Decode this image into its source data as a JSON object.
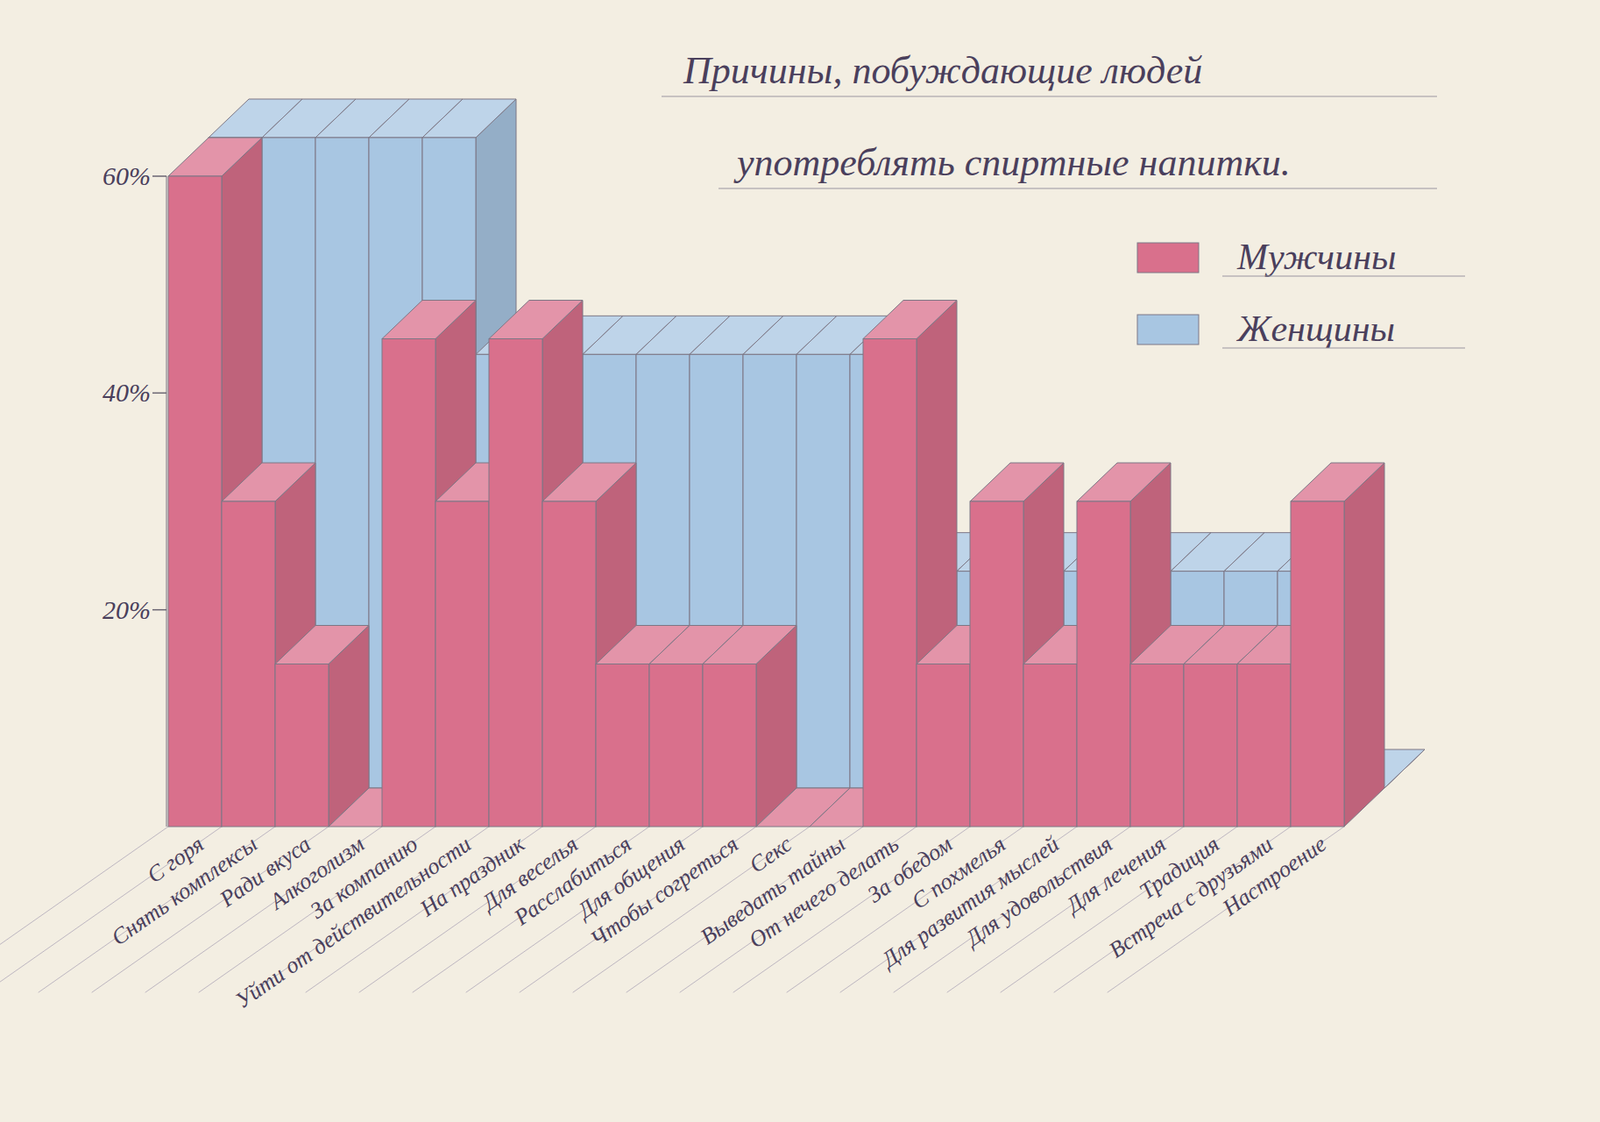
{
  "chart_data": {
    "type": "bar",
    "title": "Причины, побуждающие людей употреблять спиртные напитки.",
    "categories": [
      "С горя",
      "Снять комплексы",
      "Ради вкуса",
      "Алкоголизм",
      "За компанию",
      "Уйти от действительности",
      "На праздник",
      "Для веселья",
      "Расслабиться",
      "Для общения",
      "Чтобы согреться",
      "Секс",
      "Выведать тайны",
      "От нечего делать",
      "За обедом",
      "С похмелья",
      "Для развития мыслей",
      "Для удовольствия",
      "Для лечения",
      "Традиция",
      "Встреча с друзьями",
      "Настроение"
    ],
    "series": [
      {
        "name": "Мужчины",
        "color": "#d9708c",
        "values": [
          60,
          30,
          15,
          0,
          45,
          30,
          45,
          30,
          15,
          15,
          15,
          0,
          0,
          45,
          15,
          30,
          15,
          30,
          15,
          15,
          15,
          30
        ]
      },
      {
        "name": "Женщины",
        "color": "#a8c6e2",
        "values": [
          60,
          60,
          60,
          60,
          60,
          40,
          40,
          40,
          40,
          40,
          40,
          40,
          40,
          20,
          20,
          20,
          20,
          20,
          20,
          20,
          20,
          0
        ]
      }
    ],
    "ylim": [
      0,
      60
    ],
    "yticks": [
      {
        "value": 20,
        "label": "20%"
      },
      {
        "value": 40,
        "label": "40%"
      },
      {
        "value": 60,
        "label": "60%"
      }
    ],
    "legend": "top-right",
    "grid": false
  }
}
